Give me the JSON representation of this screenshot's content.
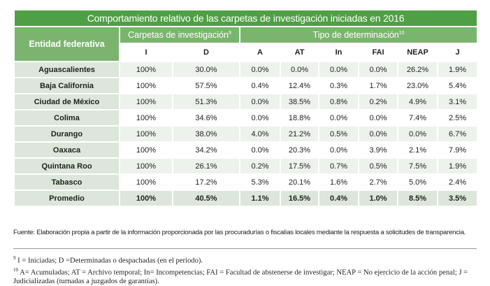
{
  "table": {
    "title": "Comportamiento relativo de las carpetas de investigación iniciadas en 2016",
    "entity_header": "Entidad federativa",
    "group1": "Carpetas de investigación",
    "group1_sup": "9",
    "group2": "Tipo de determinación",
    "group2_sup": "10",
    "columns": [
      "I",
      "D",
      "A",
      "AT",
      "In",
      "FAI",
      "NEAP",
      "J"
    ],
    "rows": [
      {
        "entity": "Aguascalientes",
        "values": [
          "100%",
          "30.0%",
          "0.0%",
          "0.0%",
          "0.0%",
          "0.0%",
          "26.2%",
          "1.9%"
        ]
      },
      {
        "entity": "Baja California",
        "values": [
          "100%",
          "57.5%",
          "0.4%",
          "12.4%",
          "0.3%",
          "1.7%",
          "23.0%",
          "5.4%"
        ]
      },
      {
        "entity": "Ciudad de México",
        "values": [
          "100%",
          "51.3%",
          "0.0%",
          "38.5%",
          "0.8%",
          "0.2%",
          "4.9%",
          "3.1%"
        ]
      },
      {
        "entity": "Colima",
        "values": [
          "100%",
          "34.6%",
          "0.0%",
          "18.8%",
          "0.0%",
          "0.0%",
          "7.4%",
          "2.5%"
        ]
      },
      {
        "entity": "Durango",
        "values": [
          "100%",
          "38.0%",
          "4.0%",
          "21.2%",
          "0.5%",
          "0.0%",
          "0.0%",
          "6.7%"
        ]
      },
      {
        "entity": "Oaxaca",
        "values": [
          "100%",
          "34.2%",
          "0.0%",
          "20.3%",
          "0.0%",
          "3.9%",
          "2.1%",
          "7.9%"
        ]
      },
      {
        "entity": "Quintana Roo",
        "values": [
          "100%",
          "26.1%",
          "0.2%",
          "17.5%",
          "0.7%",
          "0.5%",
          "7.5%",
          "1.9%"
        ]
      },
      {
        "entity": "Tabasco",
        "values": [
          "100%",
          "17.2%",
          "5.3%",
          "20.1%",
          "1.6%",
          "2.7%",
          "5.0%",
          "2.4%"
        ]
      },
      {
        "entity": "Promedio",
        "values": [
          "100%",
          "40.5%",
          "1.1%",
          "16.5%",
          "0.4%",
          "1.0%",
          "8.5%",
          "3.5%"
        ]
      }
    ]
  },
  "source": "Fuente: Elaboración propia a partir de la información proporcionada por las procuradurías o fiscalías locales mediante la respuesta a solicitudes de transparencia.",
  "notes": [
    {
      "mark": "9",
      "text": "I = Iniciadas; D =Determinadas o despachadas (en el periodo)."
    },
    {
      "mark": "10",
      "text": "A= Acumuladas; AT = Archivo temporal; In= Incompetencias; FAI = Facultad de abstenerse de investigar; NEAP = No ejercicio de la acción penal; J = Judicializadas (turnadas a juzgados de garantías)."
    }
  ],
  "colors": {
    "title_bg": "#4f9f45",
    "header_bg": "#7bb46f",
    "entity_bg": "#dce6da",
    "row_alt_bg": "#edf2ec"
  }
}
